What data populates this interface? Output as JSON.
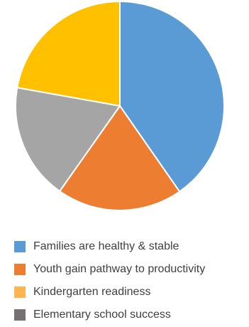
{
  "chart_data": {
    "type": "pie",
    "title": "",
    "legend_position": "bottom",
    "slices": [
      {
        "name": "Families are healthy & stable",
        "value": 40.3,
        "color": "#5b9bd5"
      },
      {
        "name": "Youth gain pathway to productivity",
        "value": 19.5,
        "color": "#ed7d31"
      },
      {
        "name": "Kindergarten readiness",
        "value": 18.0,
        "color": "#a5a5a5"
      },
      {
        "name": "Elementary school success",
        "value": 22.2,
        "color": "#ffc000"
      }
    ],
    "legend": [
      {
        "name": "Families are healthy & stable",
        "color": "#5b9bd5"
      },
      {
        "name": "Youth gain pathway to productivity",
        "color": "#ed7d31"
      },
      {
        "name": "Kindergarten readiness",
        "color": "#ffb452"
      },
      {
        "name": "Elementary school success",
        "color": "#767171"
      }
    ]
  }
}
